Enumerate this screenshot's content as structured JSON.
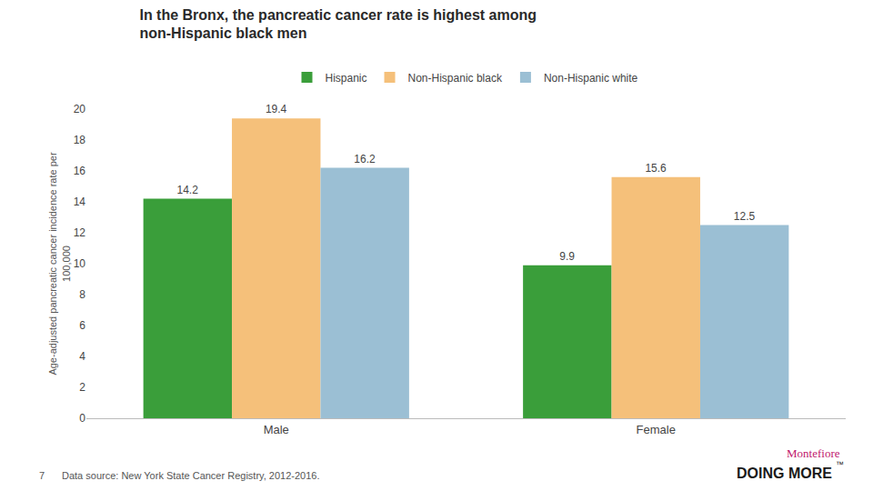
{
  "chart_data": {
    "type": "bar",
    "title": "In the Bronx, the pancreatic cancer rate is highest among\nnon-Hispanic black men",
    "ylabel": "Age-adjusted pancreatic cancer incidence rate per\n100,000",
    "categories": [
      "Male",
      "Female"
    ],
    "series": [
      {
        "name": "Hispanic",
        "color": "#3a9e3a",
        "values": [
          14.2,
          9.9
        ]
      },
      {
        "name": "Non-Hispanic black",
        "color": "#f5c07a",
        "values": [
          19.4,
          15.6
        ]
      },
      {
        "name": "Non-Hispanic white",
        "color": "#9bbfd4",
        "values": [
          16.2,
          12.5
        ]
      }
    ],
    "ylim": [
      0,
      20
    ],
    "yticks": [
      0,
      2,
      4,
      6,
      8,
      10,
      12,
      14,
      16,
      18,
      20
    ],
    "grid": false,
    "legend": "top",
    "data_labels": true,
    "annotations": [
      "7",
      "Data source: New York State Cancer Registry, 2012-2016.",
      "Montefiore",
      "DOING MORE",
      "™"
    ]
  }
}
